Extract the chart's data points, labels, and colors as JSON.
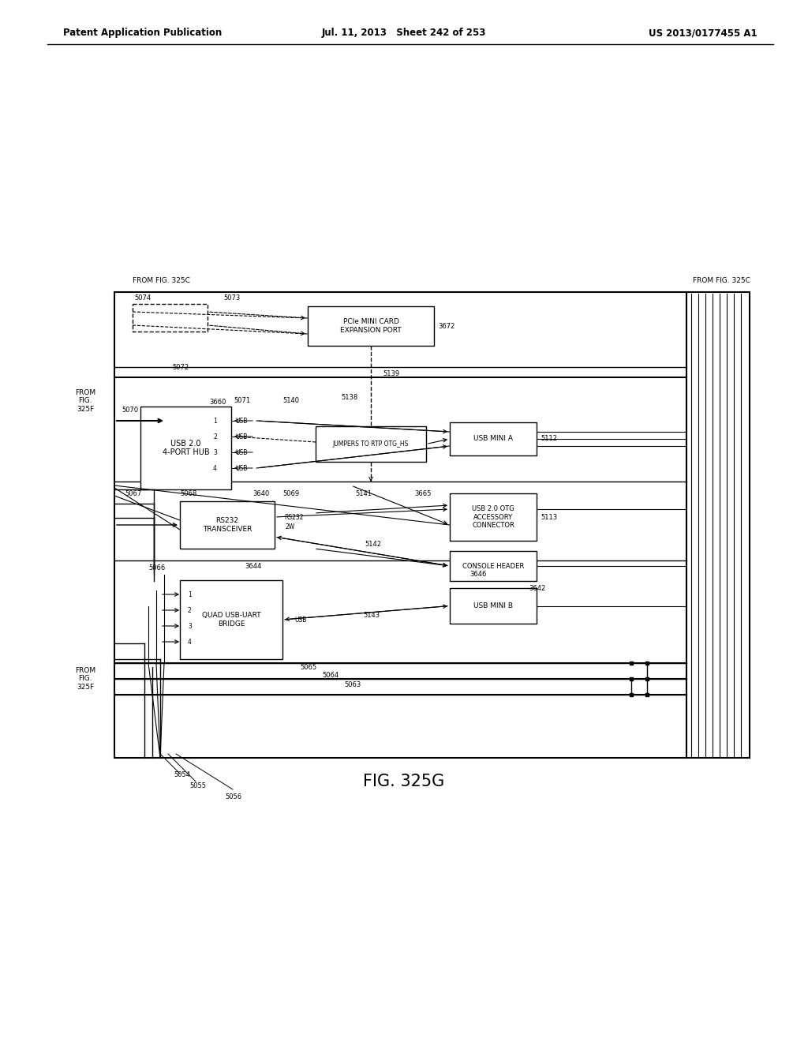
{
  "title": "FIG. 325G",
  "header_left": "Patent Application Publication",
  "header_mid": "Jul. 11, 2013   Sheet 242 of 253",
  "header_right": "US 2013/0177455 A1",
  "bg_color": "#ffffff",
  "fg_color": "#000000"
}
